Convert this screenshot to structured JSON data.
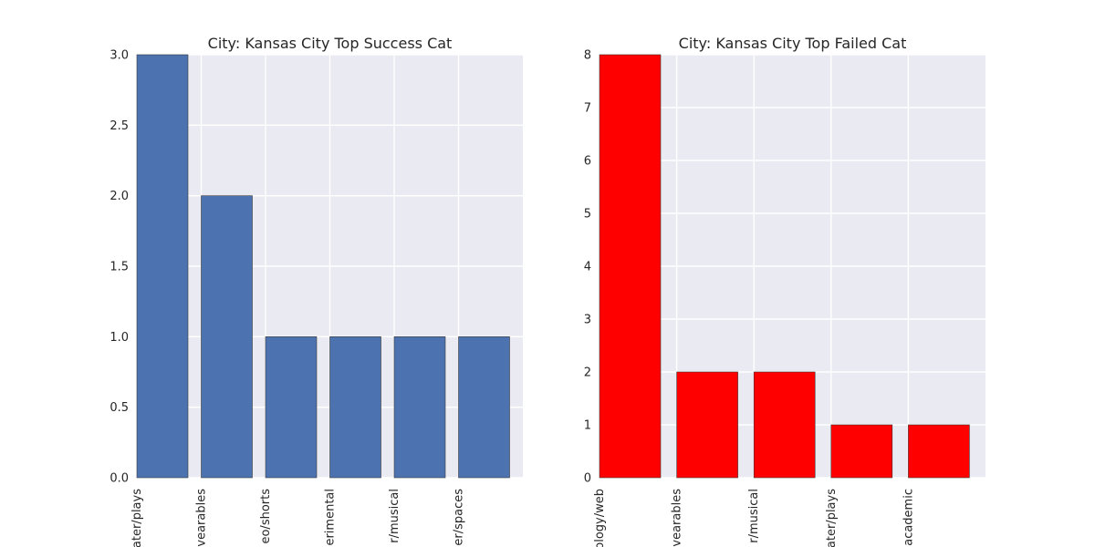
{
  "chart_data": [
    {
      "type": "bar",
      "title": "City: Kansas City Top Success Cat",
      "categories": [
        "theater/plays",
        "technology/wearables",
        "film & video/shorts",
        "music/experimental",
        "theater/musical",
        "theater/spaces"
      ],
      "category_labels_visible": [
        "ater/plays",
        "vearables",
        "eo/shorts",
        "erimental",
        "r/musical",
        "er/spaces"
      ],
      "values": [
        3,
        2,
        1,
        1,
        1,
        1
      ],
      "ylim": [
        0,
        3.0
      ],
      "yticks": [
        "0.0",
        "0.5",
        "1.0",
        "1.5",
        "2.0",
        "2.5",
        "3.0"
      ],
      "xlabel": "",
      "ylabel": "",
      "bar_color": "#4c72b0",
      "grid": true
    },
    {
      "type": "bar",
      "title": "City: Kansas City Top Failed Cat",
      "categories": [
        "technology/web",
        "technology/wearables",
        "theater/musical",
        "theater/plays",
        "publishing/academic"
      ],
      "category_labels_visible": [
        "ology/web",
        "vearables",
        "r/musical",
        "ater/plays",
        "academic"
      ],
      "values": [
        8,
        2,
        2,
        1,
        1
      ],
      "ylim": [
        0,
        8
      ],
      "yticks": [
        "0",
        "1",
        "2",
        "3",
        "4",
        "5",
        "6",
        "7",
        "8"
      ],
      "xlabel": "",
      "ylabel": "",
      "bar_color": "#ff0000",
      "grid": true
    }
  ]
}
